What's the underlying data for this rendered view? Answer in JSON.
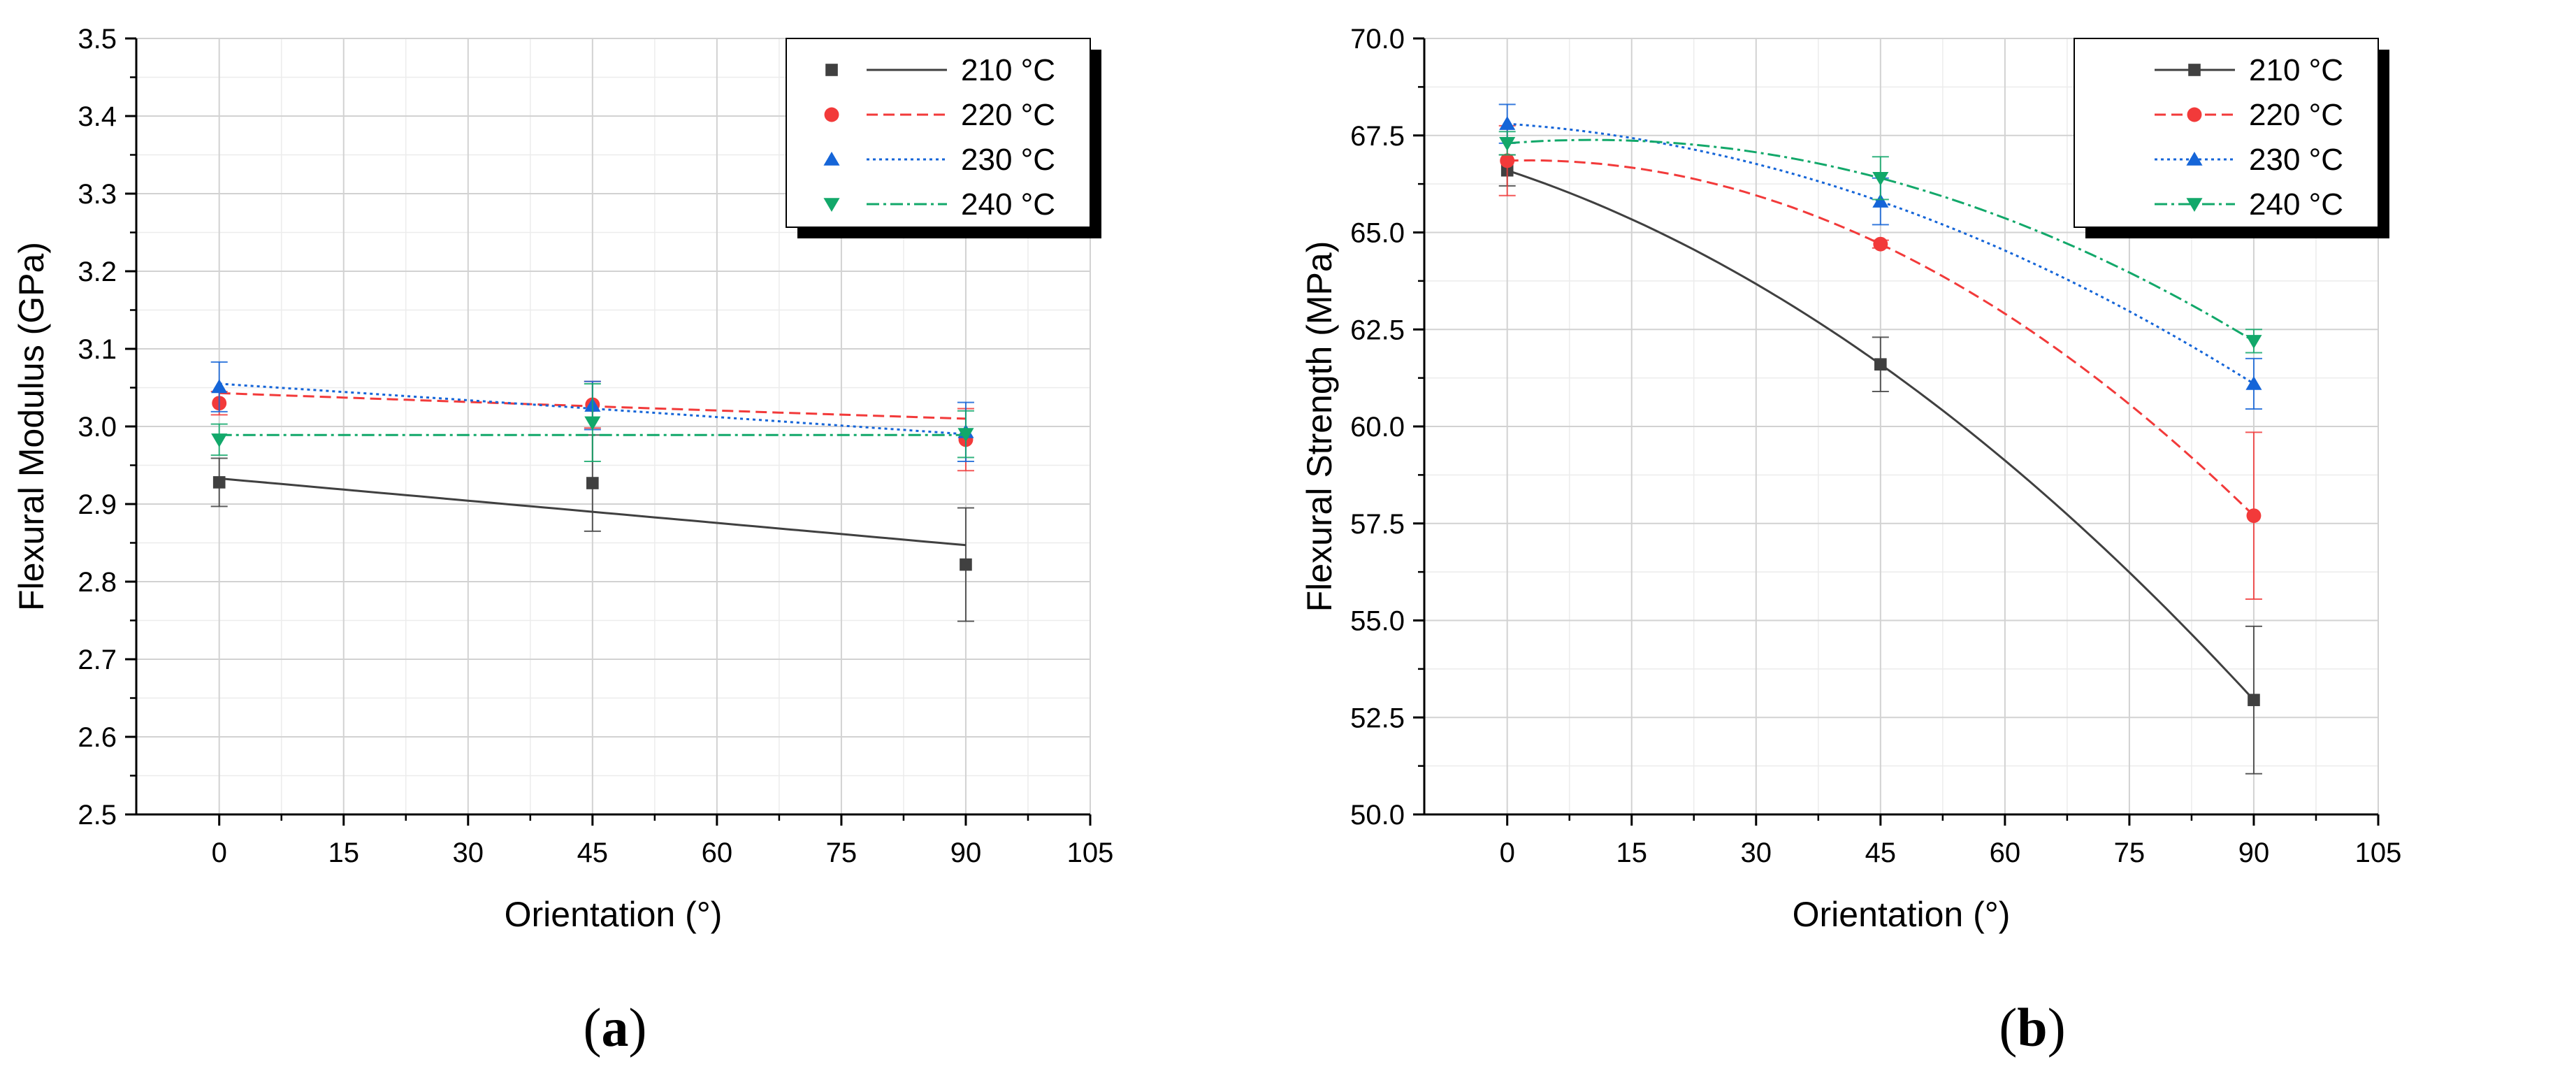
{
  "chart_data": [
    {
      "type": "scatter",
      "panel": "a",
      "caption_open": "(",
      "caption_letter": "a",
      "caption_close": ")",
      "xlabel": "Orientation (°)",
      "ylabel": "Flexural Modulus (GPa)",
      "xlim": [
        -10,
        105
      ],
      "ylim": [
        2.5,
        3.5
      ],
      "xticks": [
        "0",
        "15",
        "30",
        "45",
        "60",
        "75",
        "90",
        "105"
      ],
      "yticks": [
        "2.5",
        "2.6",
        "2.7",
        "2.8",
        "2.9",
        "3.0",
        "3.1",
        "3.2",
        "3.3",
        "3.4",
        "3.5"
      ],
      "grid": true,
      "legend_position": "top-right",
      "series": [
        {
          "name": "210 °C",
          "color": "#404040",
          "marker": "square",
          "dash": "solid",
          "x": [
            0,
            45,
            90
          ],
          "values": [
            2.928,
            2.927,
            2.822
          ],
          "errors": [
            0.031,
            0.062,
            0.073
          ],
          "fit": [
            2.933,
            2.89,
            2.847
          ]
        },
        {
          "name": "220 °C",
          "color": "#f23a3a",
          "marker": "circle",
          "dash": "dashed",
          "x": [
            0,
            45,
            90
          ],
          "values": [
            3.03,
            3.028,
            2.983
          ],
          "errors": [
            0.015,
            0.03,
            0.04
          ],
          "fit": [
            3.043,
            3.026,
            3.01
          ]
        },
        {
          "name": "230 °C",
          "color": "#1565d8",
          "marker": "triangle-up",
          "dash": "dotted",
          "x": [
            0,
            45,
            90
          ],
          "values": [
            3.051,
            3.027,
            2.993
          ],
          "errors": [
            0.032,
            0.031,
            0.038
          ],
          "fit": [
            3.055,
            3.023,
            2.99
          ]
        },
        {
          "name": "240 °C",
          "color": "#12a86a",
          "marker": "triangle-down",
          "dash": "dashdot",
          "x": [
            0,
            45,
            90
          ],
          "values": [
            2.983,
            3.005,
            2.99
          ],
          "errors": [
            0.02,
            0.05,
            0.03
          ],
          "fit": [
            2.989,
            2.989,
            2.989
          ]
        }
      ]
    },
    {
      "type": "scatter",
      "panel": "b",
      "caption_open": "(",
      "caption_letter": "b",
      "caption_close": ")",
      "xlabel": "Orientation (°)",
      "ylabel": "Flexural Strength (MPa)",
      "xlim": [
        -10,
        105
      ],
      "ylim": [
        50.0,
        70.0
      ],
      "xticks": [
        "0",
        "15",
        "30",
        "45",
        "60",
        "75",
        "90",
        "105"
      ],
      "yticks": [
        "50.0",
        "52.5",
        "55.0",
        "57.5",
        "60.0",
        "62.5",
        "65.0",
        "67.5",
        "70.0"
      ],
      "grid": true,
      "legend_position": "top-right",
      "series": [
        {
          "name": "210 °C",
          "color": "#404040",
          "marker": "square",
          "dash": "solid",
          "x": [
            0,
            45,
            90
          ],
          "values": [
            66.6,
            61.6,
            52.95
          ],
          "errors": [
            0.4,
            0.7,
            1.9
          ],
          "fit": [
            66.6,
            61.6,
            52.95
          ]
        },
        {
          "name": "220 °C",
          "color": "#f23a3a",
          "marker": "circle",
          "dash": "dashed",
          "x": [
            0,
            45,
            90
          ],
          "values": [
            66.85,
            64.7,
            57.7
          ],
          "errors": [
            0.9,
            0.1,
            2.15
          ],
          "fit": [
            66.85,
            64.7,
            57.7
          ]
        },
        {
          "name": "230 °C",
          "color": "#1565d8",
          "marker": "triangle-up",
          "dash": "dotted",
          "x": [
            0,
            45,
            90
          ],
          "values": [
            67.8,
            65.8,
            61.1
          ],
          "errors": [
            0.5,
            0.6,
            0.65
          ],
          "fit": [
            67.8,
            65.8,
            61.1
          ]
        },
        {
          "name": "240 °C",
          "color": "#12a86a",
          "marker": "triangle-down",
          "dash": "dashdot",
          "x": [
            0,
            45,
            90
          ],
          "values": [
            67.3,
            66.4,
            62.2
          ],
          "errors": [
            0.3,
            0.55,
            0.3
          ],
          "fit": [
            67.3,
            66.4,
            62.2
          ]
        }
      ]
    }
  ]
}
